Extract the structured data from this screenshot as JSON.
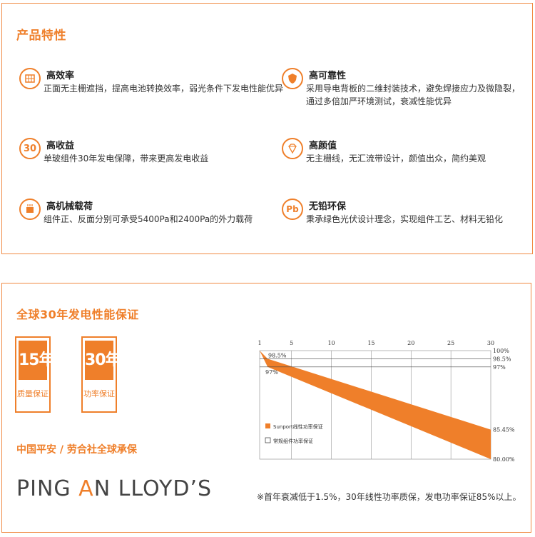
{
  "features": {
    "title": "产品特性",
    "items": [
      {
        "title": "高效率",
        "desc": "正面无主栅遮挡，提高电池转换效率，弱光条件下发电性能优异",
        "icon": "solar-cell-icon"
      },
      {
        "title": "高可靠性",
        "desc": "采用导电背板的二维封装技术，避免焊接应力及微隐裂，通过多倍加严环境测试，衰减性能优异",
        "icon": "shield-icon"
      },
      {
        "title": "高收益",
        "desc": "单玻组件30年发电保障，带来更高发电收益",
        "icon": "30-badge-icon",
        "icon_text": "30"
      },
      {
        "title": "高颜值",
        "desc": "无主栅线，无汇流带设计，颜值出众，简约美观",
        "icon": "diamond-icon"
      },
      {
        "title": "高机械载荷",
        "desc": "组件正、反面分别可承受5400Pa和2400Pa的外力载荷",
        "icon": "load-panel-icon"
      },
      {
        "title": "无铅环保",
        "desc": "秉承绿色光伏设计理念，实现组件工艺、材料无铅化",
        "icon": "lead-free-icon",
        "icon_text": "Pb"
      }
    ]
  },
  "warranty": {
    "title": "全球30年发电性能保证",
    "badges": [
      {
        "num": "15年",
        "label": "质量保证"
      },
      {
        "num": "30年",
        "label": "功率保证"
      }
    ],
    "insurer_title": "中国平安 / 劳合社全球承保",
    "logo": {
      "part1": "PING ",
      "mid": "A",
      "part2": "N LLOYD’S"
    },
    "note": "※首年衰减低于1.5%，30年线性功率质保，发电功率保证85%以上。"
  },
  "chart_data": {
    "type": "area",
    "x_ticks": [
      "1",
      "5",
      "10",
      "15",
      "20",
      "25",
      "30"
    ],
    "x_range": [
      1,
      30
    ],
    "right_labels": [
      "100%",
      "98.5%",
      "97%",
      "85.45%",
      "80.00%"
    ],
    "left_labels": [
      "98.5%",
      "97%"
    ],
    "series": [
      {
        "name": "Sunport线性功率保证",
        "color": "#ef7f2a",
        "x": [
          1,
          2,
          30
        ],
        "upper": [
          100,
          98.5,
          85.45
        ],
        "lower": [
          100,
          97,
          80.0
        ]
      },
      {
        "name": "常规组件功率保证",
        "color": "#ffffff"
      }
    ],
    "legend": "bottom-left"
  },
  "colors": {
    "accent": "#ef7f2a"
  }
}
